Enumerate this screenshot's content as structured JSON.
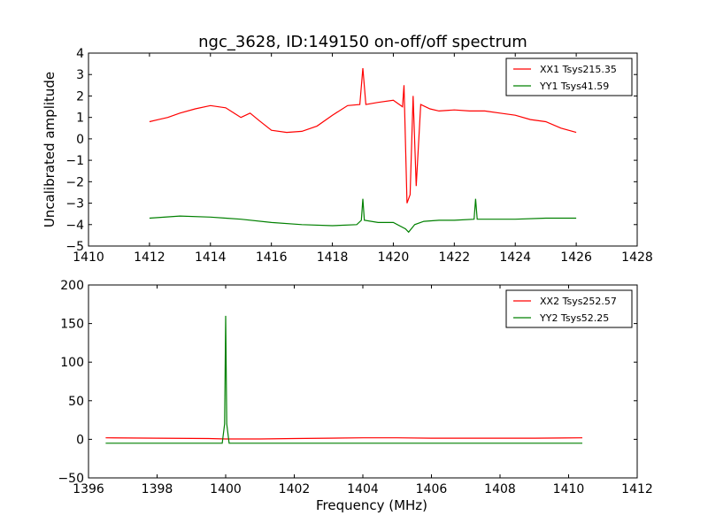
{
  "figure": {
    "title": "ngc_3628, ID:149150 on-off/off spectrum"
  },
  "chart_data": [
    {
      "type": "line",
      "title": "ngc_3628, ID:149150 on-off/off spectrum",
      "xlabel": "",
      "ylabel": "Uncalibrated amplitude",
      "xlim": [
        1410,
        1428
      ],
      "ylim": [
        -5,
        4
      ],
      "xticks": [
        1410,
        1412,
        1414,
        1416,
        1418,
        1420,
        1422,
        1424,
        1426,
        1428
      ],
      "xtick_labels": [
        "1410",
        "1412",
        "1414",
        "1416",
        "1418",
        "1420",
        "1422",
        "1424",
        "1426",
        "1428"
      ],
      "yticks": [
        4,
        3,
        2,
        1,
        0,
        -1,
        -2,
        -3,
        -4,
        -5
      ],
      "ytick_labels": [
        "4",
        "3",
        "2",
        "1",
        "0",
        "−1",
        "−2",
        "−3",
        "−4",
        "−5"
      ],
      "legend": "top-right",
      "grid": false,
      "series": [
        {
          "name": "XX1 Tsys215.35",
          "color": "#ff0000",
          "x": [
            1412.0,
            1412.3,
            1412.6,
            1413.0,
            1413.5,
            1414.0,
            1414.5,
            1415.0,
            1415.3,
            1415.6,
            1416.0,
            1416.5,
            1417.0,
            1417.5,
            1418.0,
            1418.5,
            1418.9,
            1419.0,
            1419.1,
            1419.5,
            1420.0,
            1420.3,
            1420.35,
            1420.45,
            1420.55,
            1420.65,
            1420.75,
            1420.9,
            1421.2,
            1421.5,
            1422.0,
            1422.5,
            1423.0,
            1423.5,
            1424.0,
            1424.5,
            1425.0,
            1425.5,
            1426.0
          ],
          "y": [
            0.8,
            0.9,
            1.0,
            1.2,
            1.4,
            1.55,
            1.45,
            1.0,
            1.2,
            0.85,
            0.4,
            0.3,
            0.35,
            0.6,
            1.1,
            1.55,
            1.6,
            3.3,
            1.6,
            1.7,
            1.8,
            1.5,
            2.5,
            -3.0,
            -2.6,
            2.0,
            -2.2,
            1.6,
            1.4,
            1.3,
            1.35,
            1.3,
            1.3,
            1.2,
            1.1,
            0.9,
            0.8,
            0.5,
            0.3
          ]
        },
        {
          "name": "YY1 Tsys41.59",
          "color": "#008000",
          "x": [
            1412.0,
            1413.0,
            1414.0,
            1414.5,
            1415.0,
            1416.0,
            1417.0,
            1418.0,
            1418.8,
            1418.95,
            1419.0,
            1419.05,
            1419.5,
            1420.0,
            1420.4,
            1420.5,
            1420.7,
            1421.0,
            1421.5,
            1422.0,
            1422.65,
            1422.7,
            1422.75,
            1423.0,
            1424.0,
            1425.0,
            1426.0
          ],
          "y": [
            -3.7,
            -3.6,
            -3.65,
            -3.7,
            -3.75,
            -3.9,
            -4.0,
            -4.05,
            -4.0,
            -3.8,
            -2.8,
            -3.8,
            -3.9,
            -3.9,
            -4.2,
            -4.35,
            -4.0,
            -3.85,
            -3.8,
            -3.8,
            -3.75,
            -2.8,
            -3.75,
            -3.75,
            -3.75,
            -3.7,
            -3.7
          ]
        }
      ]
    },
    {
      "type": "line",
      "title": "",
      "xlabel": "Frequency (MHz)",
      "ylabel": "",
      "xlim": [
        1396,
        1412
      ],
      "ylim": [
        -50,
        200
      ],
      "xticks": [
        1396,
        1398,
        1400,
        1402,
        1404,
        1406,
        1408,
        1410,
        1412
      ],
      "xtick_labels": [
        "1396",
        "1398",
        "1400",
        "1402",
        "1404",
        "1406",
        "1408",
        "1410",
        "1412"
      ],
      "yticks": [
        200,
        150,
        100,
        50,
        0,
        -50
      ],
      "ytick_labels": [
        "200",
        "150",
        "100",
        "50",
        "0",
        "−50"
      ],
      "legend": "top-right",
      "grid": false,
      "series": [
        {
          "name": "XX2 Tsys252.57",
          "color": "#ff0000",
          "x": [
            1396.5,
            1398.0,
            1399.5,
            1400.0,
            1401.0,
            1402.0,
            1403.0,
            1404.0,
            1405.0,
            1406.0,
            1407.0,
            1408.0,
            1409.0,
            1410.4
          ],
          "y": [
            2.0,
            1.5,
            1.0,
            0.5,
            0.5,
            1.0,
            1.5,
            2.0,
            2.0,
            1.5,
            1.5,
            1.5,
            1.5,
            2.0
          ]
        },
        {
          "name": "YY2 Tsys52.25",
          "color": "#008000",
          "x": [
            1396.5,
            1398.0,
            1399.9,
            1399.97,
            1400.0,
            1400.03,
            1400.1,
            1402.0,
            1404.0,
            1406.0,
            1408.0,
            1410.4
          ],
          "y": [
            -5.0,
            -5.0,
            -5.0,
            20.0,
            160.0,
            20.0,
            -5.0,
            -5.0,
            -5.0,
            -5.0,
            -5.0,
            -5.0
          ]
        }
      ]
    }
  ]
}
